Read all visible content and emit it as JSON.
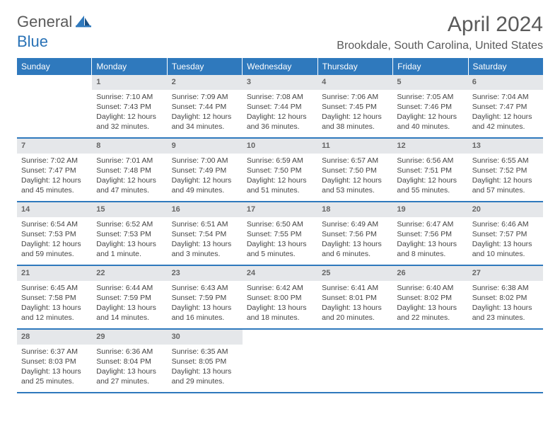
{
  "brand": {
    "general": "General",
    "blue": "Blue"
  },
  "title": "April 2024",
  "location": "Brookdale, South Carolina, United States",
  "colors": {
    "header_bg": "#2f79bd",
    "header_text": "#ffffff",
    "daynum_bg": "#e5e7ea",
    "daynum_text": "#666666",
    "body_text": "#444444",
    "title_text": "#5a5a5a",
    "page_bg": "#ffffff",
    "row_border": "#2f79bd"
  },
  "fonts": {
    "body_pt": 10.5,
    "title_pt": 30,
    "location_pt": 16,
    "dow_pt": 12,
    "daynum_pt": 11
  },
  "dow": [
    "Sunday",
    "Monday",
    "Tuesday",
    "Wednesday",
    "Thursday",
    "Friday",
    "Saturday"
  ],
  "weeks": [
    [
      {
        "n": "",
        "sr": "",
        "ss": "",
        "dl": ""
      },
      {
        "n": "1",
        "sr": "Sunrise: 7:10 AM",
        "ss": "Sunset: 7:43 PM",
        "dl": "Daylight: 12 hours and 32 minutes."
      },
      {
        "n": "2",
        "sr": "Sunrise: 7:09 AM",
        "ss": "Sunset: 7:44 PM",
        "dl": "Daylight: 12 hours and 34 minutes."
      },
      {
        "n": "3",
        "sr": "Sunrise: 7:08 AM",
        "ss": "Sunset: 7:44 PM",
        "dl": "Daylight: 12 hours and 36 minutes."
      },
      {
        "n": "4",
        "sr": "Sunrise: 7:06 AM",
        "ss": "Sunset: 7:45 PM",
        "dl": "Daylight: 12 hours and 38 minutes."
      },
      {
        "n": "5",
        "sr": "Sunrise: 7:05 AM",
        "ss": "Sunset: 7:46 PM",
        "dl": "Daylight: 12 hours and 40 minutes."
      },
      {
        "n": "6",
        "sr": "Sunrise: 7:04 AM",
        "ss": "Sunset: 7:47 PM",
        "dl": "Daylight: 12 hours and 42 minutes."
      }
    ],
    [
      {
        "n": "7",
        "sr": "Sunrise: 7:02 AM",
        "ss": "Sunset: 7:47 PM",
        "dl": "Daylight: 12 hours and 45 minutes."
      },
      {
        "n": "8",
        "sr": "Sunrise: 7:01 AM",
        "ss": "Sunset: 7:48 PM",
        "dl": "Daylight: 12 hours and 47 minutes."
      },
      {
        "n": "9",
        "sr": "Sunrise: 7:00 AM",
        "ss": "Sunset: 7:49 PM",
        "dl": "Daylight: 12 hours and 49 minutes."
      },
      {
        "n": "10",
        "sr": "Sunrise: 6:59 AM",
        "ss": "Sunset: 7:50 PM",
        "dl": "Daylight: 12 hours and 51 minutes."
      },
      {
        "n": "11",
        "sr": "Sunrise: 6:57 AM",
        "ss": "Sunset: 7:50 PM",
        "dl": "Daylight: 12 hours and 53 minutes."
      },
      {
        "n": "12",
        "sr": "Sunrise: 6:56 AM",
        "ss": "Sunset: 7:51 PM",
        "dl": "Daylight: 12 hours and 55 minutes."
      },
      {
        "n": "13",
        "sr": "Sunrise: 6:55 AM",
        "ss": "Sunset: 7:52 PM",
        "dl": "Daylight: 12 hours and 57 minutes."
      }
    ],
    [
      {
        "n": "14",
        "sr": "Sunrise: 6:54 AM",
        "ss": "Sunset: 7:53 PM",
        "dl": "Daylight: 12 hours and 59 minutes."
      },
      {
        "n": "15",
        "sr": "Sunrise: 6:52 AM",
        "ss": "Sunset: 7:53 PM",
        "dl": "Daylight: 13 hours and 1 minute."
      },
      {
        "n": "16",
        "sr": "Sunrise: 6:51 AM",
        "ss": "Sunset: 7:54 PM",
        "dl": "Daylight: 13 hours and 3 minutes."
      },
      {
        "n": "17",
        "sr": "Sunrise: 6:50 AM",
        "ss": "Sunset: 7:55 PM",
        "dl": "Daylight: 13 hours and 5 minutes."
      },
      {
        "n": "18",
        "sr": "Sunrise: 6:49 AM",
        "ss": "Sunset: 7:56 PM",
        "dl": "Daylight: 13 hours and 6 minutes."
      },
      {
        "n": "19",
        "sr": "Sunrise: 6:47 AM",
        "ss": "Sunset: 7:56 PM",
        "dl": "Daylight: 13 hours and 8 minutes."
      },
      {
        "n": "20",
        "sr": "Sunrise: 6:46 AM",
        "ss": "Sunset: 7:57 PM",
        "dl": "Daylight: 13 hours and 10 minutes."
      }
    ],
    [
      {
        "n": "21",
        "sr": "Sunrise: 6:45 AM",
        "ss": "Sunset: 7:58 PM",
        "dl": "Daylight: 13 hours and 12 minutes."
      },
      {
        "n": "22",
        "sr": "Sunrise: 6:44 AM",
        "ss": "Sunset: 7:59 PM",
        "dl": "Daylight: 13 hours and 14 minutes."
      },
      {
        "n": "23",
        "sr": "Sunrise: 6:43 AM",
        "ss": "Sunset: 7:59 PM",
        "dl": "Daylight: 13 hours and 16 minutes."
      },
      {
        "n": "24",
        "sr": "Sunrise: 6:42 AM",
        "ss": "Sunset: 8:00 PM",
        "dl": "Daylight: 13 hours and 18 minutes."
      },
      {
        "n": "25",
        "sr": "Sunrise: 6:41 AM",
        "ss": "Sunset: 8:01 PM",
        "dl": "Daylight: 13 hours and 20 minutes."
      },
      {
        "n": "26",
        "sr": "Sunrise: 6:40 AM",
        "ss": "Sunset: 8:02 PM",
        "dl": "Daylight: 13 hours and 22 minutes."
      },
      {
        "n": "27",
        "sr": "Sunrise: 6:38 AM",
        "ss": "Sunset: 8:02 PM",
        "dl": "Daylight: 13 hours and 23 minutes."
      }
    ],
    [
      {
        "n": "28",
        "sr": "Sunrise: 6:37 AM",
        "ss": "Sunset: 8:03 PM",
        "dl": "Daylight: 13 hours and 25 minutes."
      },
      {
        "n": "29",
        "sr": "Sunrise: 6:36 AM",
        "ss": "Sunset: 8:04 PM",
        "dl": "Daylight: 13 hours and 27 minutes."
      },
      {
        "n": "30",
        "sr": "Sunrise: 6:35 AM",
        "ss": "Sunset: 8:05 PM",
        "dl": "Daylight: 13 hours and 29 minutes."
      },
      {
        "n": "",
        "sr": "",
        "ss": "",
        "dl": ""
      },
      {
        "n": "",
        "sr": "",
        "ss": "",
        "dl": ""
      },
      {
        "n": "",
        "sr": "",
        "ss": "",
        "dl": ""
      },
      {
        "n": "",
        "sr": "",
        "ss": "",
        "dl": ""
      }
    ]
  ]
}
